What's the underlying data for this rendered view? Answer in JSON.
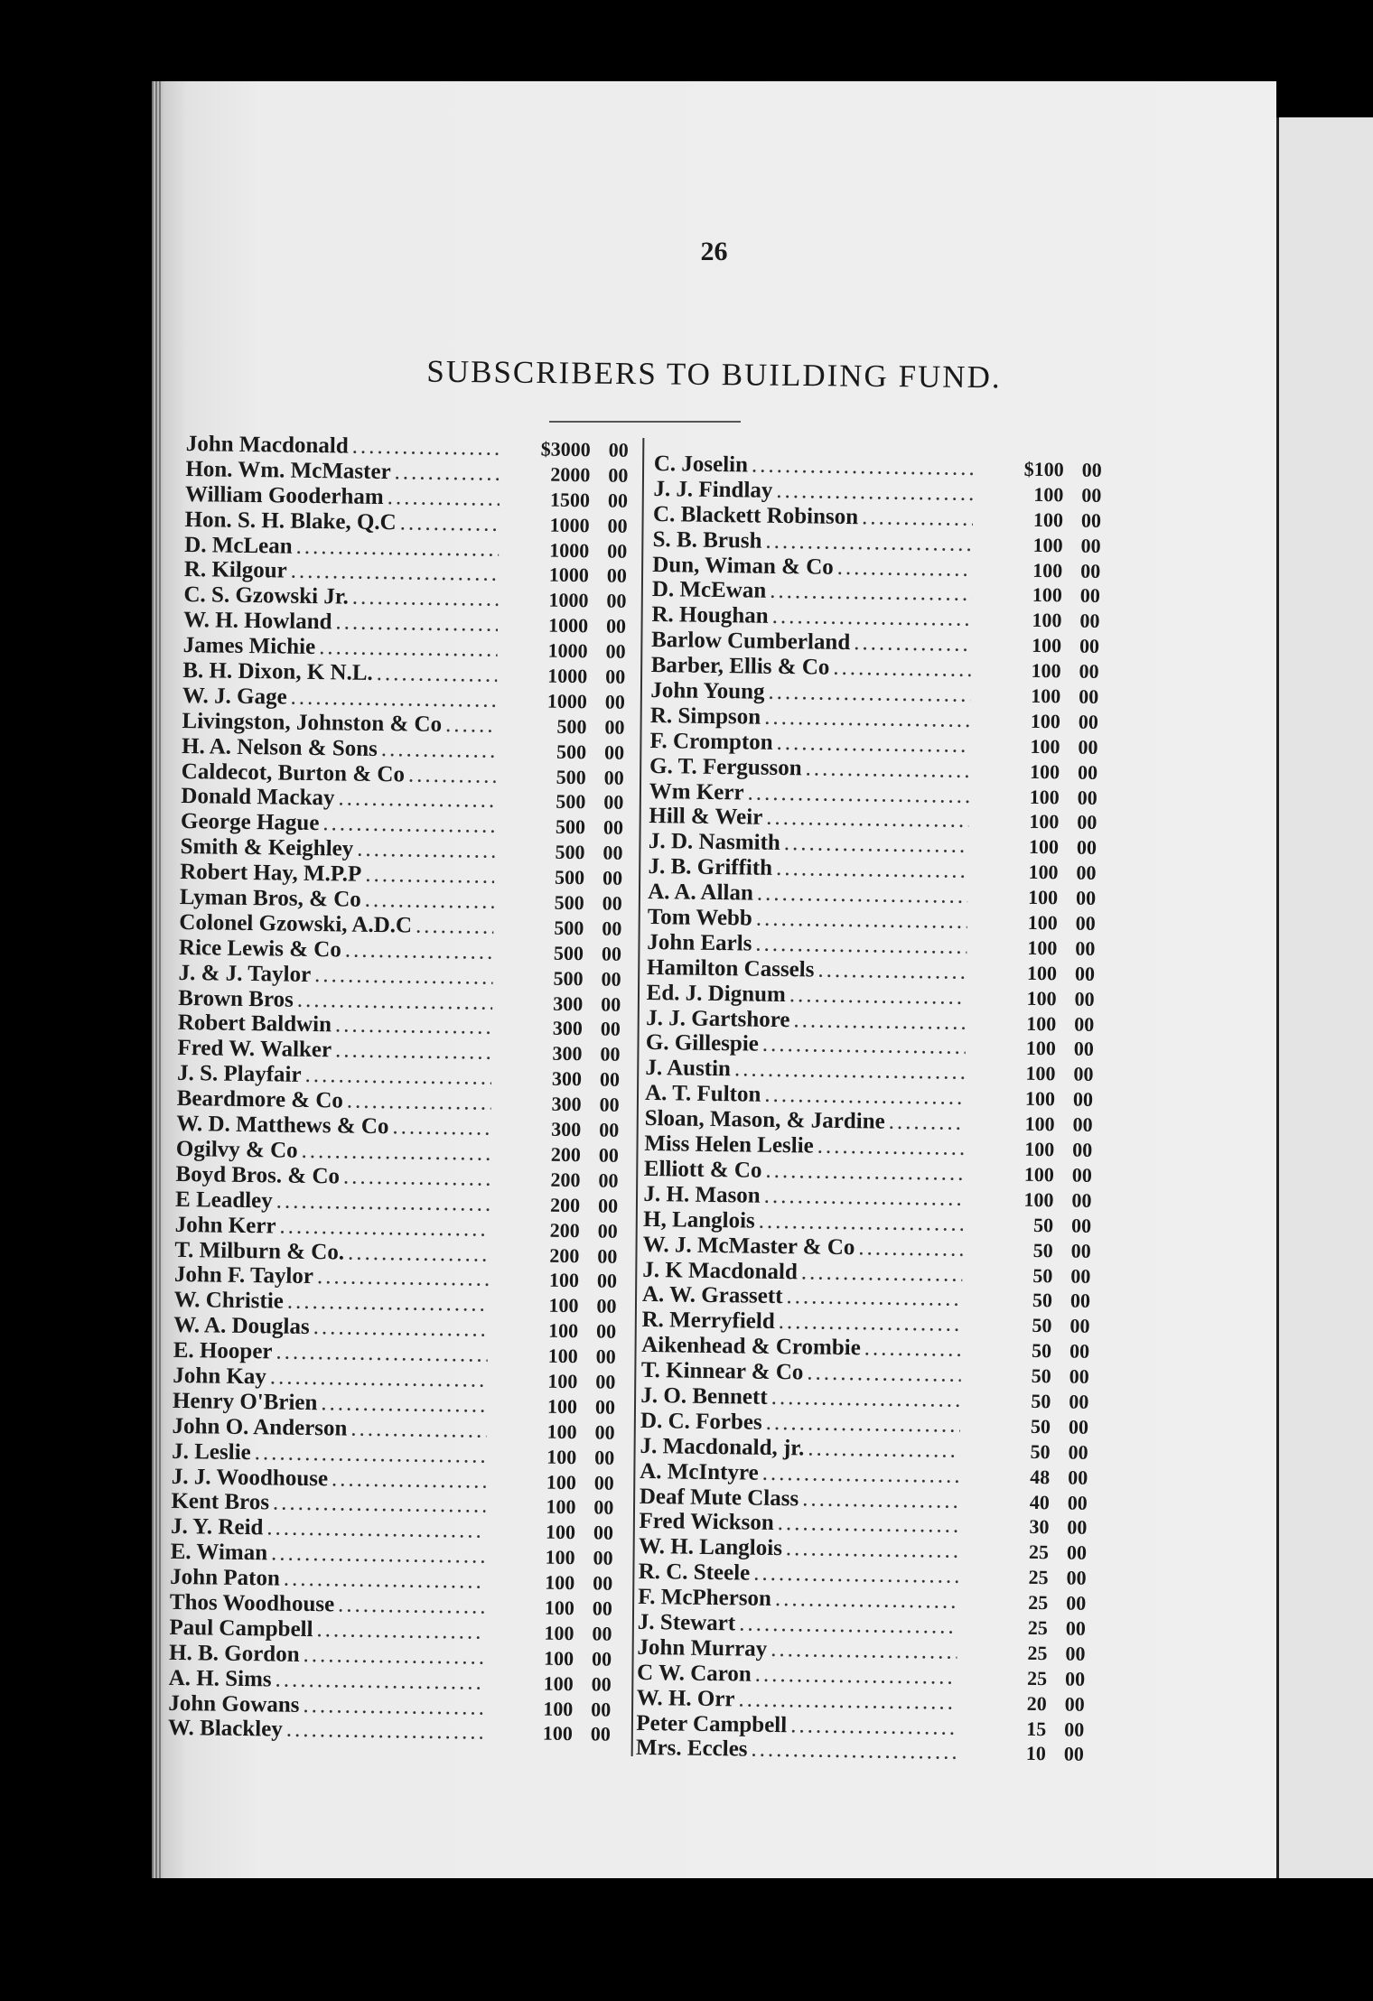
{
  "page_number": "26",
  "title": "SUBSCRIBERS TO BUILDING FUND.",
  "left_column": [
    {
      "name": "John Macdonald",
      "amount": "$3000",
      "cents": "00"
    },
    {
      "name": "Hon. Wm. McMaster",
      "amount": "2000",
      "cents": "00"
    },
    {
      "name": "William Gooderham",
      "amount": "1500",
      "cents": "00"
    },
    {
      "name": "Hon. S. H. Blake, Q.C",
      "amount": "1000",
      "cents": "00"
    },
    {
      "name": "D. McLean",
      "amount": "1000",
      "cents": "00"
    },
    {
      "name": "R. Kilgour",
      "amount": "1000",
      "cents": "00"
    },
    {
      "name": "C. S. Gzowski Jr.",
      "amount": "1000",
      "cents": "00"
    },
    {
      "name": "W. H. Howland",
      "amount": "1000",
      "cents": "00"
    },
    {
      "name": "James Michie",
      "amount": "1000",
      "cents": "00"
    },
    {
      "name": "B. H. Dixon, K N.L.",
      "amount": "1000",
      "cents": "00"
    },
    {
      "name": "W. J. Gage",
      "amount": "1000",
      "cents": "00"
    },
    {
      "name": "Livingston, Johnston & Co",
      "amount": "500",
      "cents": "00"
    },
    {
      "name": "H. A. Nelson & Sons",
      "amount": "500",
      "cents": "00"
    },
    {
      "name": "Caldecot, Burton & Co",
      "amount": "500",
      "cents": "00"
    },
    {
      "name": "Donald Mackay",
      "amount": "500",
      "cents": "00"
    },
    {
      "name": "George Hague",
      "amount": "500",
      "cents": "00"
    },
    {
      "name": "Smith & Keighley",
      "amount": "500",
      "cents": "00"
    },
    {
      "name": "Robert Hay, M.P.P",
      "amount": "500",
      "cents": "00"
    },
    {
      "name": "Lyman Bros, & Co",
      "amount": "500",
      "cents": "00"
    },
    {
      "name": "Colonel Gzowski, A.D.C",
      "amount": "500",
      "cents": "00"
    },
    {
      "name": "Rice Lewis & Co",
      "amount": "500",
      "cents": "00"
    },
    {
      "name": "J. & J. Taylor",
      "amount": "500",
      "cents": "00"
    },
    {
      "name": "Brown Bros",
      "amount": "300",
      "cents": "00"
    },
    {
      "name": "Robert Baldwin",
      "amount": "300",
      "cents": "00"
    },
    {
      "name": "Fred W. Walker",
      "amount": "300",
      "cents": "00"
    },
    {
      "name": "J. S. Playfair",
      "amount": "300",
      "cents": "00"
    },
    {
      "name": "Beardmore & Co",
      "amount": "300",
      "cents": "00"
    },
    {
      "name": "W. D. Matthews & Co",
      "amount": "300",
      "cents": "00"
    },
    {
      "name": "Ogilvy & Co",
      "amount": "200",
      "cents": "00"
    },
    {
      "name": "Boyd Bros. & Co",
      "amount": "200",
      "cents": "00"
    },
    {
      "name": "E Leadley",
      "amount": "200",
      "cents": "00"
    },
    {
      "name": "John Kerr",
      "amount": "200",
      "cents": "00"
    },
    {
      "name": "T. Milburn & Co.",
      "amount": "200",
      "cents": "00"
    },
    {
      "name": "John F. Taylor",
      "amount": "100",
      "cents": "00"
    },
    {
      "name": "W. Christie",
      "amount": "100",
      "cents": "00"
    },
    {
      "name": "W. A. Douglas",
      "amount": "100",
      "cents": "00"
    },
    {
      "name": "E. Hooper",
      "amount": "100",
      "cents": "00"
    },
    {
      "name": "John Kay",
      "amount": "100",
      "cents": "00"
    },
    {
      "name": "Henry O'Brien",
      "amount": "100",
      "cents": "00"
    },
    {
      "name": "John O. Anderson",
      "amount": "100",
      "cents": "00"
    },
    {
      "name": "J. Leslie",
      "amount": "100",
      "cents": "00"
    },
    {
      "name": "J. J. Woodhouse",
      "amount": "100",
      "cents": "00"
    },
    {
      "name": "Kent Bros",
      "amount": "100",
      "cents": "00"
    },
    {
      "name": "J. Y. Reid",
      "amount": "100",
      "cents": "00"
    },
    {
      "name": "E. Wiman",
      "amount": "100",
      "cents": "00"
    },
    {
      "name": "John Paton",
      "amount": "100",
      "cents": "00"
    },
    {
      "name": "Thos Woodhouse",
      "amount": "100",
      "cents": "00"
    },
    {
      "name": "Paul Campbell",
      "amount": "100",
      "cents": "00"
    },
    {
      "name": "H. B. Gordon",
      "amount": "100",
      "cents": "00"
    },
    {
      "name": "A. H. Sims",
      "amount": "100",
      "cents": "00"
    },
    {
      "name": "John Gowans",
      "amount": "100",
      "cents": "00"
    },
    {
      "name": "W. Blackley",
      "amount": "100",
      "cents": "00"
    }
  ],
  "right_column": [
    {
      "name": "C. Joselin",
      "amount": "$100",
      "cents": "00"
    },
    {
      "name": "J. J. Findlay",
      "amount": "100",
      "cents": "00"
    },
    {
      "name": "C. Blackett Robinson",
      "amount": "100",
      "cents": "00"
    },
    {
      "name": "S. B. Brush",
      "amount": "100",
      "cents": "00"
    },
    {
      "name": "Dun, Wiman & Co",
      "amount": "100",
      "cents": "00"
    },
    {
      "name": "D. McEwan",
      "amount": "100",
      "cents": "00"
    },
    {
      "name": "R. Houghan",
      "amount": "100",
      "cents": "00"
    },
    {
      "name": "Barlow Cumberland",
      "amount": "100",
      "cents": "00"
    },
    {
      "name": "Barber, Ellis & Co",
      "amount": "100",
      "cents": "00"
    },
    {
      "name": "John Young",
      "amount": "100",
      "cents": "00"
    },
    {
      "name": "R. Simpson",
      "amount": "100",
      "cents": "00"
    },
    {
      "name": "F. Crompton",
      "amount": "100",
      "cents": "00"
    },
    {
      "name": "G. T. Fergusson",
      "amount": "100",
      "cents": "00"
    },
    {
      "name": "Wm Kerr",
      "amount": "100",
      "cents": "00"
    },
    {
      "name": "Hill & Weir",
      "amount": "100",
      "cents": "00"
    },
    {
      "name": "J. D. Nasmith",
      "amount": "100",
      "cents": "00"
    },
    {
      "name": "J. B. Griffith",
      "amount": "100",
      "cents": "00"
    },
    {
      "name": "A. A. Allan",
      "amount": "100",
      "cents": "00"
    },
    {
      "name": "Tom Webb",
      "amount": "100",
      "cents": "00"
    },
    {
      "name": "John Earls",
      "amount": "100",
      "cents": "00"
    },
    {
      "name": "Hamilton Cassels",
      "amount": "100",
      "cents": "00"
    },
    {
      "name": "Ed. J. Dignum",
      "amount": "100",
      "cents": "00"
    },
    {
      "name": "J. J. Gartshore",
      "amount": "100",
      "cents": "00"
    },
    {
      "name": "G. Gillespie",
      "amount": "100",
      "cents": "00"
    },
    {
      "name": "J. Austin",
      "amount": "100",
      "cents": "00"
    },
    {
      "name": "A. T. Fulton",
      "amount": "100",
      "cents": "00"
    },
    {
      "name": "Sloan, Mason, & Jardine",
      "amount": "100",
      "cents": "00"
    },
    {
      "name": "Miss Helen Leslie",
      "amount": "100",
      "cents": "00"
    },
    {
      "name": "Elliott & Co",
      "amount": "100",
      "cents": "00"
    },
    {
      "name": "J. H. Mason",
      "amount": "100",
      "cents": "00"
    },
    {
      "name": "H, Langlois",
      "amount": "50",
      "cents": "00"
    },
    {
      "name": "W. J. McMaster & Co",
      "amount": "50",
      "cents": "00"
    },
    {
      "name": "J. K Macdonald",
      "amount": "50",
      "cents": "00"
    },
    {
      "name": "A. W. Grassett",
      "amount": "50",
      "cents": "00"
    },
    {
      "name": "R. Merryfield",
      "amount": "50",
      "cents": "00"
    },
    {
      "name": "Aikenhead & Crombie",
      "amount": "50",
      "cents": "00"
    },
    {
      "name": "T. Kinnear & Co",
      "amount": "50",
      "cents": "00"
    },
    {
      "name": "J. O. Bennett",
      "amount": "50",
      "cents": "00"
    },
    {
      "name": "D. C. Forbes",
      "amount": "50",
      "cents": "00"
    },
    {
      "name": "J. Macdonald, jr.",
      "amount": "50",
      "cents": "00"
    },
    {
      "name": "A. McIntyre",
      "amount": "48",
      "cents": "00"
    },
    {
      "name": "Deaf Mute Class",
      "amount": "40",
      "cents": "00"
    },
    {
      "name": "Fred Wickson",
      "amount": "30",
      "cents": "00"
    },
    {
      "name": "W. H. Langlois",
      "amount": "25",
      "cents": "00"
    },
    {
      "name": "R. C. Steele",
      "amount": "25",
      "cents": "00"
    },
    {
      "name": "F. McPherson",
      "amount": "25",
      "cents": "00"
    },
    {
      "name": "J. Stewart",
      "amount": "25",
      "cents": "00"
    },
    {
      "name": "John Murray",
      "amount": "25",
      "cents": "00"
    },
    {
      "name": "C W. Caron",
      "amount": "25",
      "cents": "00"
    },
    {
      "name": "W. H. Orr",
      "amount": "20",
      "cents": "00"
    },
    {
      "name": "Peter Campbell",
      "amount": "15",
      "cents": "00"
    },
    {
      "name": "Mrs. Eccles",
      "amount": "10",
      "cents": "00"
    }
  ]
}
